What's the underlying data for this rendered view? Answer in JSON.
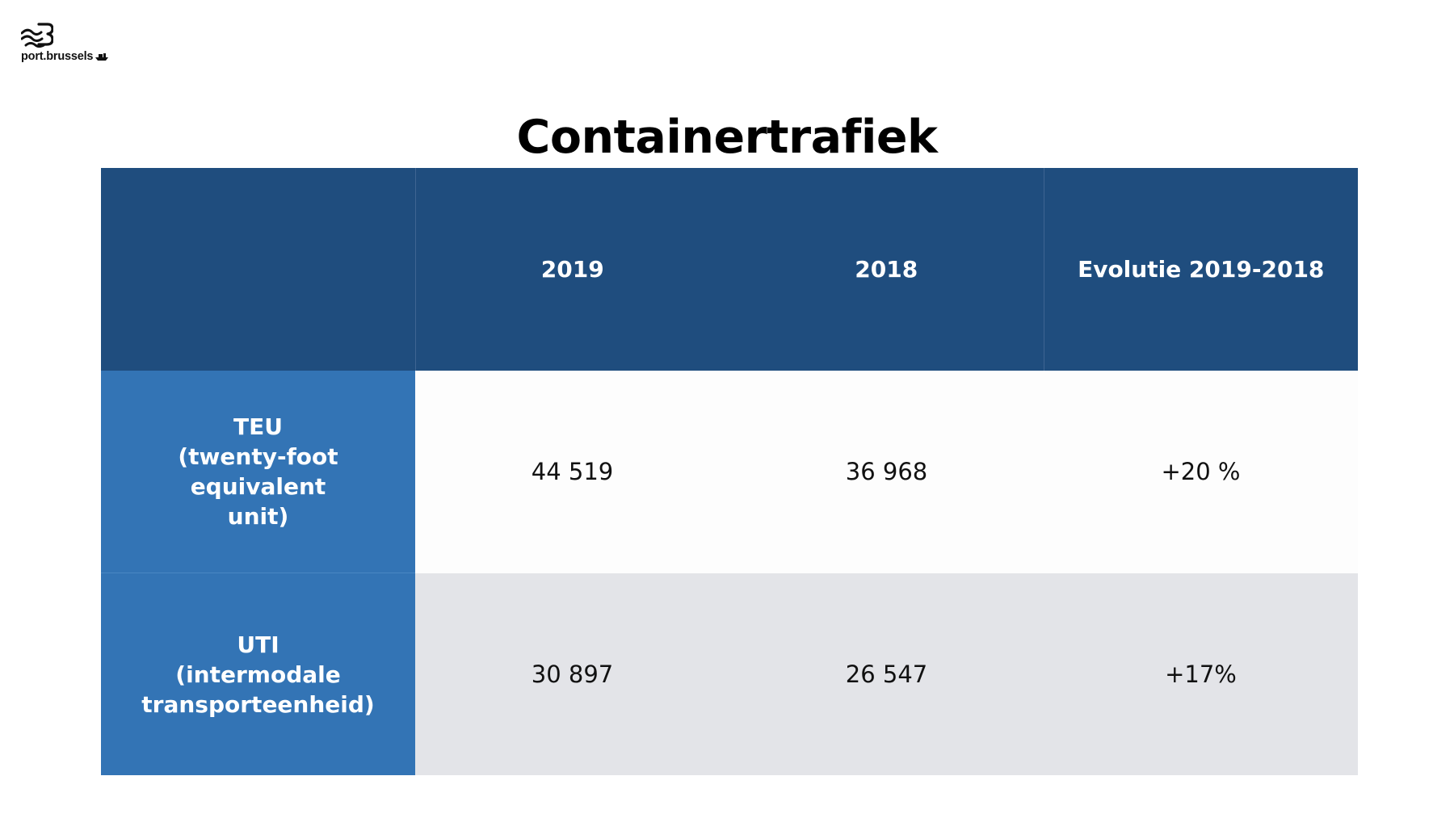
{
  "logo": {
    "text": "port.brussels",
    "mark_icon": "port-brussels-b-wave-logo",
    "boat_icon": "boat-icon"
  },
  "title": "Containertrafiek",
  "colors": {
    "header_bg": "#1f4d7e",
    "row_label_bg": "#3374b5",
    "row_even_bg": "#fdfdfd",
    "row_odd_bg": "#e3e4e8"
  },
  "table": {
    "headers": [
      "",
      "2019",
      "2018",
      "Evolutie 2019-2018"
    ],
    "rows": [
      {
        "label_lines": [
          "TEU",
          "(twenty-foot equivalent",
          "unit)"
        ],
        "cells": [
          "44 519",
          "36 968",
          "+20 %"
        ]
      },
      {
        "label_lines": [
          "UTI",
          "(intermodale",
          "transporteenheid)"
        ],
        "cells": [
          "30 897",
          "26 547",
          "+17%"
        ]
      }
    ]
  }
}
